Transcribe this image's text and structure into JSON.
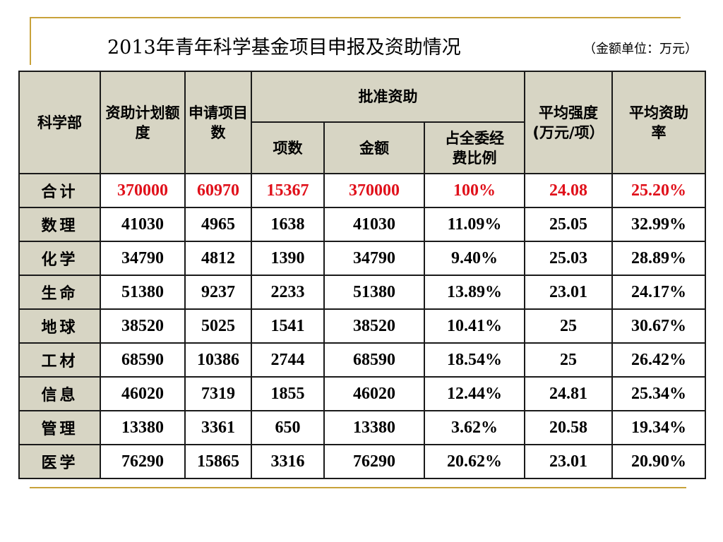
{
  "title": "2013年青年科学基金项目申报及资助情况",
  "unit_note": "（金额单位：万元）",
  "table": {
    "header": {
      "dept": "科学部",
      "plan_amount": "资助计划额度",
      "applied": "申请项目数",
      "approved_group": "批准资助",
      "approved_count": "项数",
      "approved_amount": "金额",
      "share": "占全委经费比例",
      "avg_intensity": "平均强度(万元/项）",
      "avg_rate": "平均资助率"
    },
    "total_row": {
      "dept": "合计",
      "plan_amount": "370000",
      "applied": "60970",
      "approved_count": "15367",
      "approved_amount": "370000",
      "share": "100%",
      "avg_intensity": "24.08",
      "avg_rate": "25.20%"
    },
    "rows": [
      {
        "dept": "数理",
        "plan_amount": "41030",
        "applied": "4965",
        "approved_count": "1638",
        "approved_amount": "41030",
        "share": "11.09%",
        "avg_intensity": "25.05",
        "avg_rate": "32.99%"
      },
      {
        "dept": "化学",
        "plan_amount": "34790",
        "applied": "4812",
        "approved_count": "1390",
        "approved_amount": "34790",
        "share": "9.40%",
        "avg_intensity": "25.03",
        "avg_rate": "28.89%"
      },
      {
        "dept": "生命",
        "plan_amount": "51380",
        "applied": "9237",
        "approved_count": "2233",
        "approved_amount": "51380",
        "share": "13.89%",
        "avg_intensity": "23.01",
        "avg_rate": "24.17%"
      },
      {
        "dept": "地球",
        "plan_amount": "38520",
        "applied": "5025",
        "approved_count": "1541",
        "approved_amount": "38520",
        "share": "10.41%",
        "avg_intensity": "25",
        "avg_rate": "30.67%"
      },
      {
        "dept": "工材",
        "plan_amount": "68590",
        "applied": "10386",
        "approved_count": "2744",
        "approved_amount": "68590",
        "share": "18.54%",
        "avg_intensity": "25",
        "avg_rate": "26.42%"
      },
      {
        "dept": "信息",
        "plan_amount": "46020",
        "applied": "7319",
        "approved_count": "1855",
        "approved_amount": "46020",
        "share": "12.44%",
        "avg_intensity": "24.81",
        "avg_rate": "25.34%"
      },
      {
        "dept": "管理",
        "plan_amount": "13380",
        "applied": "3361",
        "approved_count": "650",
        "approved_amount": "13380",
        "share": "3.62%",
        "avg_intensity": "20.58",
        "avg_rate": "19.34%"
      },
      {
        "dept": "医学",
        "plan_amount": "76290",
        "applied": "15865",
        "approved_count": "3316",
        "approved_amount": "76290",
        "share": "20.62%",
        "avg_intensity": "23.01",
        "avg_rate": "20.90%"
      }
    ]
  },
  "colors": {
    "header_bg": "#d7d5c4",
    "total_text": "#e0101a",
    "accent_line": "#c8a23a"
  }
}
